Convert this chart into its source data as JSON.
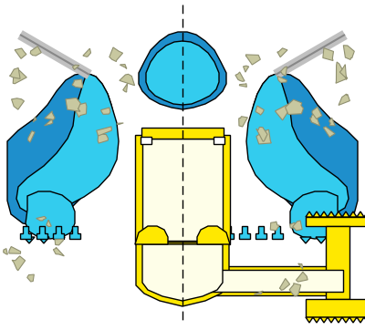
{
  "bg_color": "#ffffff",
  "blue_outer": "#1E8FCC",
  "blue_inner": "#33CCEE",
  "yellow": "#FFE800",
  "cream": "#FEFEE8",
  "stone_fill": "#C8C8A0",
  "stone_edge": "#909070",
  "black": "#000000",
  "gray_pipe": "#C0C0C0",
  "gray_pipe_edge": "#888888",
  "white_seal": "#FFFFFF",
  "figsize": [
    4.0,
    3.62
  ],
  "dpi": 100
}
